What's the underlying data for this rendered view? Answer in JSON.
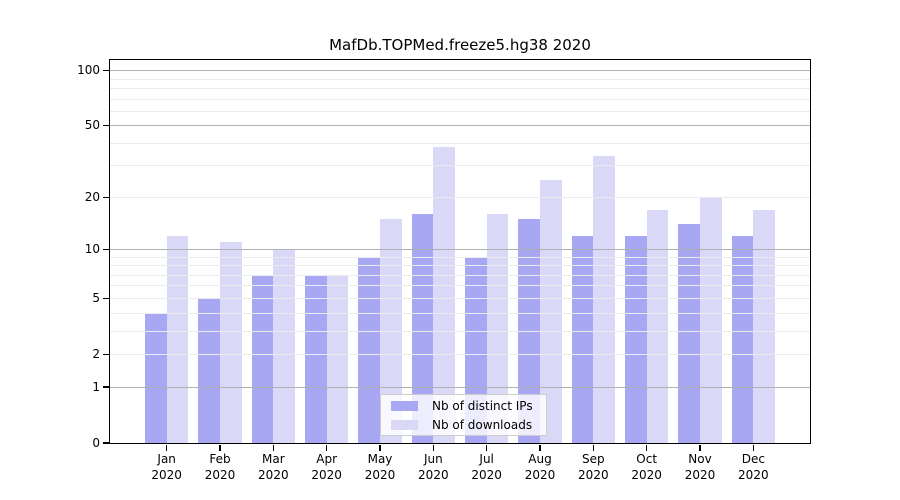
{
  "title": "MafDb.TOPMed.freeze5.hg38 2020",
  "chart_data": {
    "type": "bar",
    "title": "MafDb.TOPMed.freeze5.hg38 2020",
    "categories": [
      "Jan",
      "Feb",
      "Mar",
      "Apr",
      "May",
      "Jun",
      "Jul",
      "Aug",
      "Sep",
      "Oct",
      "Nov",
      "Dec"
    ],
    "year_label": "2020",
    "series": [
      {
        "name": "Nb of distinct IPs",
        "color": "#a7a7f3",
        "values": [
          4,
          5,
          7,
          7,
          9,
          16,
          9,
          15,
          12,
          12,
          14,
          12
        ]
      },
      {
        "name": "Nb of downloads",
        "color": "#d9d9f7",
        "values": [
          12,
          11,
          10,
          7,
          15,
          38,
          16,
          25,
          34,
          17,
          20,
          17
        ]
      }
    ],
    "xlabel": "",
    "ylabel": "",
    "yscale": "log10(1+x)",
    "ylim": [
      0,
      114.2
    ],
    "ytick_values": [
      0,
      1,
      2,
      5,
      10,
      20,
      50,
      100
    ],
    "gridlines_minor": [
      2,
      3,
      4,
      5,
      6,
      7,
      8,
      9,
      20,
      30,
      40,
      60,
      70,
      80,
      90
    ],
    "gridlines_major": [
      1,
      10,
      50,
      100
    ],
    "grid": "on",
    "legend_position": "bottom-center",
    "colors": {
      "minor_grid": "#ebebeb",
      "major_grid": "#b0b0b0",
      "axis": "#000000",
      "background": "#ffffff"
    }
  }
}
